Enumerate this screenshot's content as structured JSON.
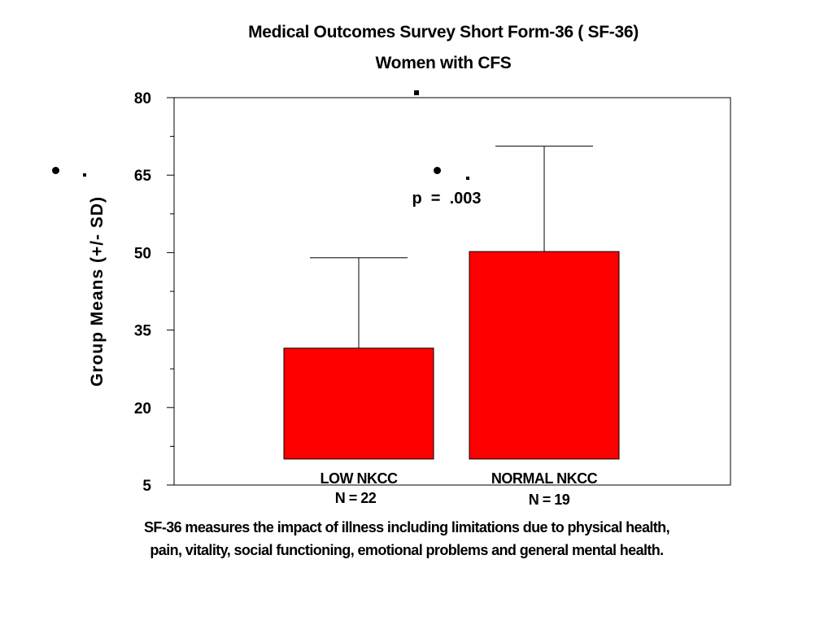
{
  "chart_data": {
    "type": "bar",
    "title": "Medical Outcomes Survey Short Form-36 ( SF-36)",
    "subtitle": "Women with CFS",
    "ylabel": "Group Means (+/- SD)",
    "xlabel": "",
    "ylim": [
      5,
      80
    ],
    "yticks": [
      5,
      20,
      35,
      50,
      65,
      80
    ],
    "categories": [
      "LOW NKCC",
      "NORMAL NKCC"
    ],
    "category_n": [
      "N = 22",
      "N = 19"
    ],
    "values": [
      31.5,
      50.2
    ],
    "error_upper": [
      49.0,
      70.6
    ],
    "bar_color": "#ff0000",
    "annotation": "p  =  .003",
    "grid": false,
    "legend": "none"
  },
  "caption": {
    "line1": "SF-36 measures the impact of illness including limitations due to physical health,",
    "line2": "pain, vitality, social functioning, emotional problems and general mental health."
  }
}
